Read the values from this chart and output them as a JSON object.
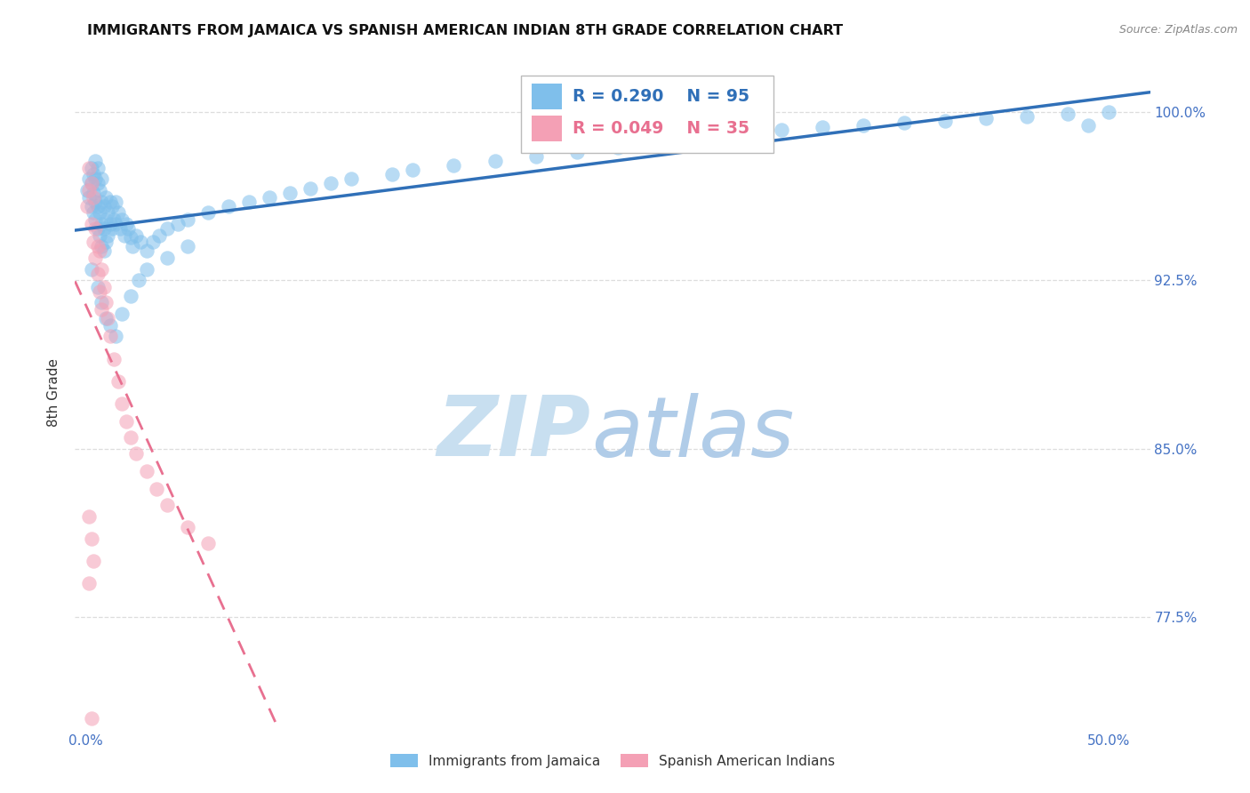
{
  "title": "IMMIGRANTS FROM JAMAICA VS SPANISH AMERICAN INDIAN 8TH GRADE CORRELATION CHART",
  "source": "Source: ZipAtlas.com",
  "xlabel_ticks": [
    "0.0%",
    "",
    "",
    "",
    "",
    "50.0%"
  ],
  "xlabel_vals": [
    0.0,
    0.1,
    0.2,
    0.3,
    0.4,
    0.5
  ],
  "ylabel_label": "8th Grade",
  "ylabel_ticks_labels": [
    "100.0%",
    "92.5%",
    "85.0%",
    "77.5%"
  ],
  "ylabel_ticks_vals": [
    1.0,
    0.925,
    0.85,
    0.775
  ],
  "ylim": [
    0.725,
    1.025
  ],
  "xlim": [
    -0.005,
    0.52
  ],
  "legend_blue_label": "Immigrants from Jamaica",
  "legend_pink_label": "Spanish American Indians",
  "blue_color": "#7fbfeb",
  "pink_color": "#f4a0b5",
  "blue_line_color": "#3070b8",
  "pink_line_color": "#e87090",
  "watermark_zip": "ZIP",
  "watermark_atlas": "atlas",
  "watermark_color_zip": "#c8dff0",
  "watermark_color_atlas": "#b0cce8",
  "tick_label_color": "#4472c4",
  "grid_color": "#dddddd",
  "background_color": "#ffffff",
  "blue_scatter_x": [
    0.001,
    0.002,
    0.002,
    0.003,
    0.003,
    0.003,
    0.004,
    0.004,
    0.004,
    0.005,
    0.005,
    0.005,
    0.005,
    0.006,
    0.006,
    0.006,
    0.006,
    0.007,
    0.007,
    0.007,
    0.008,
    0.008,
    0.008,
    0.008,
    0.009,
    0.009,
    0.009,
    0.01,
    0.01,
    0.01,
    0.011,
    0.011,
    0.012,
    0.012,
    0.013,
    0.013,
    0.014,
    0.015,
    0.015,
    0.016,
    0.017,
    0.018,
    0.019,
    0.02,
    0.021,
    0.022,
    0.023,
    0.025,
    0.027,
    0.03,
    0.033,
    0.036,
    0.04,
    0.045,
    0.05,
    0.06,
    0.07,
    0.08,
    0.09,
    0.1,
    0.11,
    0.12,
    0.13,
    0.15,
    0.16,
    0.18,
    0.2,
    0.22,
    0.24,
    0.26,
    0.28,
    0.3,
    0.32,
    0.34,
    0.36,
    0.38,
    0.4,
    0.42,
    0.44,
    0.46,
    0.48,
    0.5,
    0.003,
    0.006,
    0.008,
    0.01,
    0.012,
    0.015,
    0.018,
    0.022,
    0.026,
    0.03,
    0.04,
    0.05,
    0.49
  ],
  "blue_scatter_y": [
    0.965,
    0.97,
    0.962,
    0.968,
    0.975,
    0.958,
    0.972,
    0.964,
    0.955,
    0.97,
    0.96,
    0.978,
    0.952,
    0.968,
    0.958,
    0.975,
    0.948,
    0.965,
    0.955,
    0.945,
    0.96,
    0.95,
    0.94,
    0.97,
    0.958,
    0.948,
    0.938,
    0.962,
    0.952,
    0.942,
    0.955,
    0.945,
    0.96,
    0.95,
    0.958,
    0.948,
    0.952,
    0.96,
    0.95,
    0.955,
    0.948,
    0.952,
    0.945,
    0.95,
    0.948,
    0.944,
    0.94,
    0.945,
    0.942,
    0.938,
    0.942,
    0.945,
    0.948,
    0.95,
    0.952,
    0.955,
    0.958,
    0.96,
    0.962,
    0.964,
    0.966,
    0.968,
    0.97,
    0.972,
    0.974,
    0.976,
    0.978,
    0.98,
    0.982,
    0.984,
    0.986,
    0.988,
    0.99,
    0.992,
    0.993,
    0.994,
    0.995,
    0.996,
    0.997,
    0.998,
    0.999,
    1.0,
    0.93,
    0.922,
    0.915,
    0.908,
    0.905,
    0.9,
    0.91,
    0.918,
    0.925,
    0.93,
    0.935,
    0.94,
    0.994
  ],
  "pink_scatter_x": [
    0.001,
    0.002,
    0.002,
    0.003,
    0.003,
    0.004,
    0.004,
    0.005,
    0.005,
    0.006,
    0.006,
    0.007,
    0.007,
    0.008,
    0.008,
    0.009,
    0.01,
    0.011,
    0.012,
    0.014,
    0.016,
    0.018,
    0.02,
    0.022,
    0.025,
    0.03,
    0.035,
    0.04,
    0.05,
    0.06,
    0.002,
    0.003,
    0.004,
    0.002,
    0.003
  ],
  "pink_scatter_y": [
    0.958,
    0.965,
    0.975,
    0.968,
    0.95,
    0.962,
    0.942,
    0.948,
    0.935,
    0.94,
    0.928,
    0.938,
    0.92,
    0.93,
    0.912,
    0.922,
    0.915,
    0.908,
    0.9,
    0.89,
    0.88,
    0.87,
    0.862,
    0.855,
    0.848,
    0.84,
    0.832,
    0.825,
    0.815,
    0.808,
    0.82,
    0.81,
    0.8,
    0.79,
    0.73
  ]
}
